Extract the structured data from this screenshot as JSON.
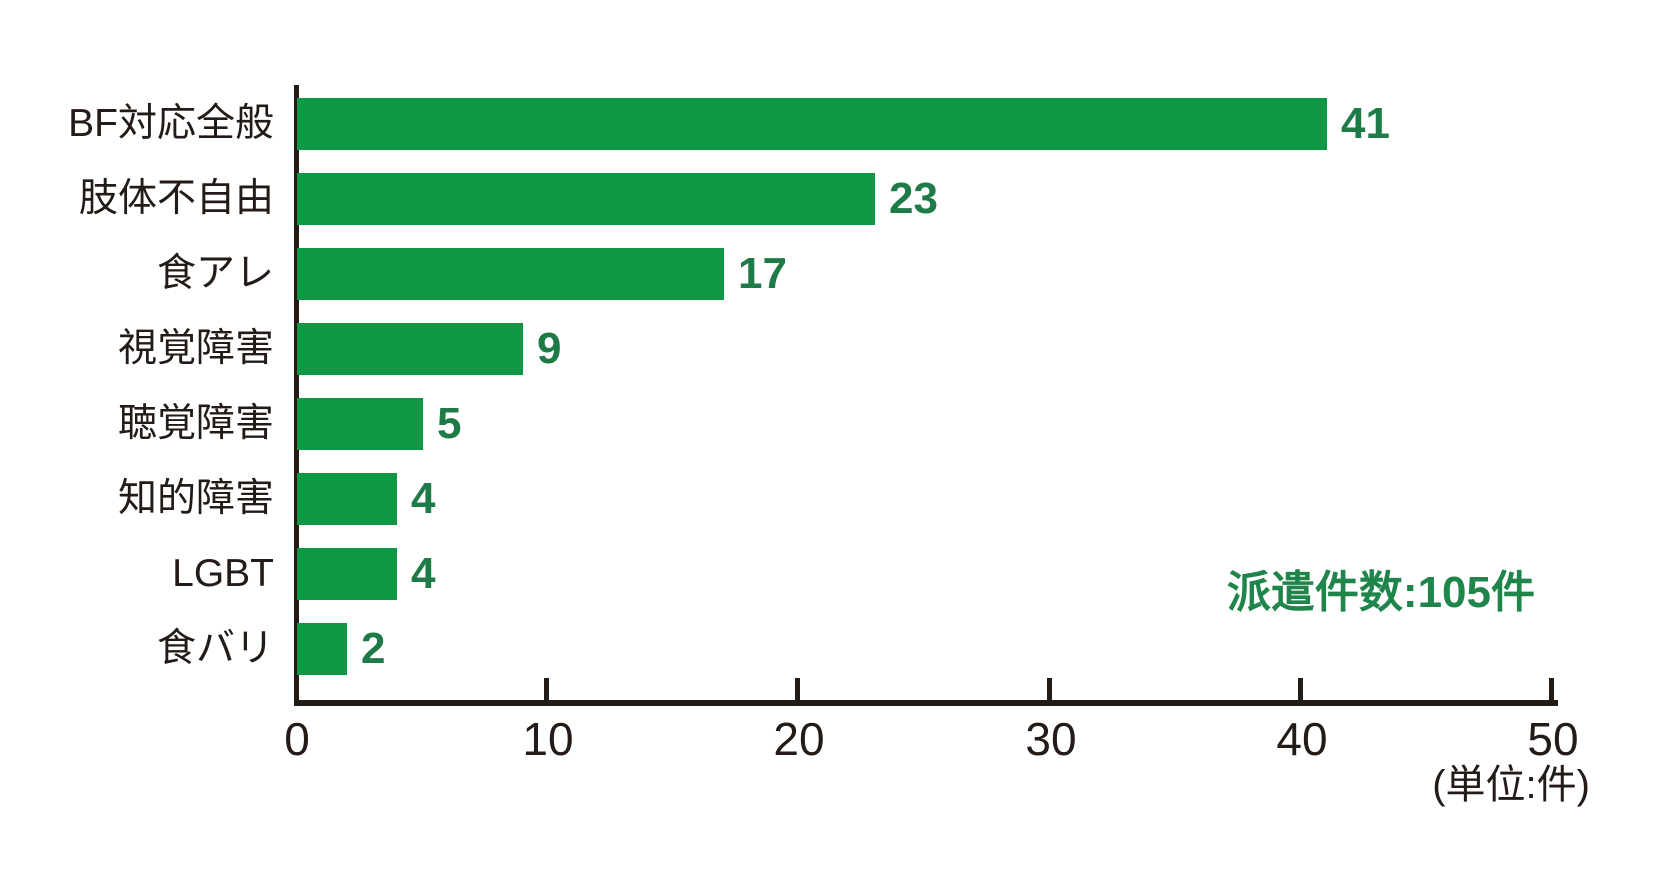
{
  "chart_data": {
    "type": "bar",
    "orientation": "horizontal",
    "categories": [
      "BF対応全般",
      "肢体不自由",
      "食アレ",
      "視覚障害",
      "聴覚障害",
      "知的障害",
      "LGBT",
      "食バリ"
    ],
    "values": [
      41,
      23,
      17,
      9,
      5,
      4,
      4,
      2
    ],
    "xlim": [
      0,
      50
    ],
    "xticks": [
      0,
      10,
      20,
      30,
      40,
      50
    ],
    "annotation": "派遣件数:105件",
    "unit_note": "(単位:件)",
    "grid": false,
    "legend_position": "none",
    "colors": {
      "bar": "#0e9845",
      "value_label": "#1e7b48",
      "annotation": "#1f854b",
      "axis": "#231b16",
      "category_label": "#221b17"
    }
  }
}
